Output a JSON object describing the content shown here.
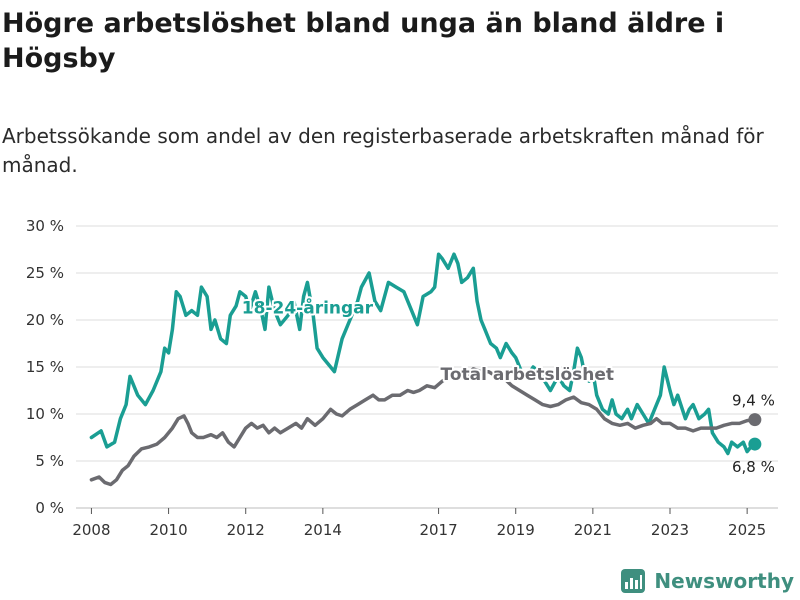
{
  "title": "Högre arbetslöshet bland unga än bland äldre i Högsby",
  "subtitle": "Arbetssökande som andel av den registerbaserade arbetskraften månad för månad.",
  "brand": "Newsworthy",
  "colors": {
    "youth": "#1a9e93",
    "total": "#6b6b70",
    "grid": "#dcdcdc",
    "brand": "#3f8f7f"
  },
  "chart_data": {
    "type": "line",
    "xlabel": "",
    "ylabel": "",
    "ylim": [
      0,
      30
    ],
    "xlim": [
      2007.6,
      2025.8
    ],
    "grid": true,
    "y_ticks": [
      0,
      5,
      10,
      15,
      20,
      25,
      30
    ],
    "y_tick_labels": [
      "0 %",
      "5 %",
      "10 %",
      "15 %",
      "20 %",
      "25 %",
      "30 %"
    ],
    "x_ticks": [
      2008,
      2010,
      2012,
      2014,
      2017,
      2019,
      2021,
      2023,
      2025
    ],
    "x_tick_labels": [
      "2008",
      "2010",
      "2012",
      "2014",
      "2017",
      "2019",
      "2021",
      "2023",
      "2025"
    ],
    "series": [
      {
        "name": "18-24-åringar",
        "color_key": "youth",
        "end_value_label": "6,8 %",
        "points": [
          [
            2008.0,
            7.5
          ],
          [
            2008.25,
            8.2
          ],
          [
            2008.4,
            6.5
          ],
          [
            2008.6,
            7.0
          ],
          [
            2008.75,
            9.5
          ],
          [
            2008.9,
            11.0
          ],
          [
            2009.0,
            14.0
          ],
          [
            2009.2,
            12.0
          ],
          [
            2009.4,
            11.0
          ],
          [
            2009.6,
            12.5
          ],
          [
            2009.8,
            14.5
          ],
          [
            2009.9,
            17.0
          ],
          [
            2010.0,
            16.5
          ],
          [
            2010.1,
            19.0
          ],
          [
            2010.2,
            23.0
          ],
          [
            2010.3,
            22.5
          ],
          [
            2010.45,
            20.5
          ],
          [
            2010.6,
            21.0
          ],
          [
            2010.75,
            20.5
          ],
          [
            2010.85,
            23.5
          ],
          [
            2011.0,
            22.5
          ],
          [
            2011.1,
            19.0
          ],
          [
            2011.2,
            20.0
          ],
          [
            2011.35,
            18.0
          ],
          [
            2011.5,
            17.5
          ],
          [
            2011.6,
            20.5
          ],
          [
            2011.75,
            21.5
          ],
          [
            2011.85,
            23.0
          ],
          [
            2012.0,
            22.5
          ],
          [
            2012.1,
            21.0
          ],
          [
            2012.25,
            23.0
          ],
          [
            2012.4,
            21.0
          ],
          [
            2012.5,
            19.0
          ],
          [
            2012.6,
            23.5
          ],
          [
            2012.75,
            21.0
          ],
          [
            2012.9,
            19.5
          ],
          [
            2013.1,
            20.5
          ],
          [
            2013.25,
            22.0
          ],
          [
            2013.4,
            19.0
          ],
          [
            2013.5,
            22.5
          ],
          [
            2013.6,
            24.0
          ],
          [
            2013.75,
            20.5
          ],
          [
            2013.85,
            17.0
          ],
          [
            2014.0,
            16.0
          ],
          [
            2014.2,
            15.0
          ],
          [
            2014.3,
            14.5
          ],
          [
            2014.5,
            18.0
          ],
          [
            2014.7,
            20.0
          ],
          [
            2014.9,
            22.0
          ],
          [
            2015.0,
            23.5
          ],
          [
            2015.2,
            25.0
          ],
          [
            2015.35,
            22.0
          ],
          [
            2015.5,
            21.0
          ],
          [
            2015.7,
            24.0
          ],
          [
            2015.9,
            23.5
          ],
          [
            2016.1,
            23.0
          ],
          [
            2016.3,
            21.0
          ],
          [
            2016.45,
            19.5
          ],
          [
            2016.6,
            22.5
          ],
          [
            2016.8,
            23.0
          ],
          [
            2016.9,
            23.5
          ],
          [
            2017.0,
            27.0
          ],
          [
            2017.1,
            26.5
          ],
          [
            2017.25,
            25.5
          ],
          [
            2017.4,
            27.0
          ],
          [
            2017.5,
            26.0
          ],
          [
            2017.6,
            24.0
          ],
          [
            2017.75,
            24.5
          ],
          [
            2017.9,
            25.5
          ],
          [
            2018.0,
            22.0
          ],
          [
            2018.1,
            20.0
          ],
          [
            2018.2,
            19.0
          ],
          [
            2018.35,
            17.5
          ],
          [
            2018.5,
            17.0
          ],
          [
            2018.6,
            16.0
          ],
          [
            2018.75,
            17.5
          ],
          [
            2018.9,
            16.5
          ],
          [
            2019.0,
            16.0
          ],
          [
            2019.15,
            14.5
          ],
          [
            2019.3,
            14.0
          ],
          [
            2019.45,
            15.0
          ],
          [
            2019.6,
            14.5
          ],
          [
            2019.75,
            13.5
          ],
          [
            2019.9,
            12.5
          ],
          [
            2020.1,
            14.0
          ],
          [
            2020.25,
            13.0
          ],
          [
            2020.4,
            12.5
          ],
          [
            2020.5,
            14.5
          ],
          [
            2020.6,
            17.0
          ],
          [
            2020.7,
            16.0
          ],
          [
            2020.8,
            14.0
          ],
          [
            2020.9,
            13.5
          ],
          [
            2021.0,
            14.5
          ],
          [
            2021.1,
            12.0
          ],
          [
            2021.25,
            10.5
          ],
          [
            2021.4,
            10.0
          ],
          [
            2021.5,
            11.5
          ],
          [
            2021.6,
            10.0
          ],
          [
            2021.75,
            9.5
          ],
          [
            2021.9,
            10.5
          ],
          [
            2022.0,
            9.5
          ],
          [
            2022.15,
            11.0
          ],
          [
            2022.3,
            10.0
          ],
          [
            2022.45,
            9.0
          ],
          [
            2022.6,
            10.5
          ],
          [
            2022.75,
            12.0
          ],
          [
            2022.85,
            15.0
          ],
          [
            2023.0,
            12.5
          ],
          [
            2023.1,
            11.0
          ],
          [
            2023.2,
            12.0
          ],
          [
            2023.4,
            9.5
          ],
          [
            2023.5,
            10.5
          ],
          [
            2023.6,
            11.0
          ],
          [
            2023.75,
            9.5
          ],
          [
            2023.9,
            10.0
          ],
          [
            2024.0,
            10.5
          ],
          [
            2024.1,
            8.0
          ],
          [
            2024.25,
            7.0
          ],
          [
            2024.4,
            6.5
          ],
          [
            2024.5,
            5.8
          ],
          [
            2024.6,
            7.0
          ],
          [
            2024.75,
            6.5
          ],
          [
            2024.9,
            7.0
          ],
          [
            2025.0,
            6.0
          ],
          [
            2025.1,
            6.5
          ],
          [
            2025.2,
            6.8
          ]
        ]
      },
      {
        "name": "Total arbetslöshet",
        "color_key": "total",
        "end_value_label": "9,4 %",
        "points": [
          [
            2008.0,
            3.0
          ],
          [
            2008.2,
            3.3
          ],
          [
            2008.35,
            2.7
          ],
          [
            2008.5,
            2.5
          ],
          [
            2008.65,
            3.0
          ],
          [
            2008.8,
            4.0
          ],
          [
            2008.95,
            4.5
          ],
          [
            2009.1,
            5.5
          ],
          [
            2009.3,
            6.3
          ],
          [
            2009.5,
            6.5
          ],
          [
            2009.7,
            6.8
          ],
          [
            2009.9,
            7.5
          ],
          [
            2010.1,
            8.5
          ],
          [
            2010.25,
            9.5
          ],
          [
            2010.4,
            9.8
          ],
          [
            2010.5,
            9.0
          ],
          [
            2010.6,
            8.0
          ],
          [
            2010.75,
            7.5
          ],
          [
            2010.9,
            7.5
          ],
          [
            2011.1,
            7.8
          ],
          [
            2011.25,
            7.5
          ],
          [
            2011.4,
            8.0
          ],
          [
            2011.55,
            7.0
          ],
          [
            2011.7,
            6.5
          ],
          [
            2011.85,
            7.5
          ],
          [
            2012.0,
            8.5
          ],
          [
            2012.15,
            9.0
          ],
          [
            2012.3,
            8.5
          ],
          [
            2012.45,
            8.8
          ],
          [
            2012.6,
            8.0
          ],
          [
            2012.75,
            8.5
          ],
          [
            2012.9,
            8.0
          ],
          [
            2013.1,
            8.5
          ],
          [
            2013.3,
            9.0
          ],
          [
            2013.45,
            8.5
          ],
          [
            2013.6,
            9.5
          ],
          [
            2013.8,
            8.8
          ],
          [
            2014.0,
            9.5
          ],
          [
            2014.2,
            10.5
          ],
          [
            2014.35,
            10.0
          ],
          [
            2014.5,
            9.8
          ],
          [
            2014.7,
            10.5
          ],
          [
            2014.9,
            11.0
          ],
          [
            2015.1,
            11.5
          ],
          [
            2015.3,
            12.0
          ],
          [
            2015.45,
            11.5
          ],
          [
            2015.6,
            11.5
          ],
          [
            2015.8,
            12.0
          ],
          [
            2016.0,
            12.0
          ],
          [
            2016.2,
            12.5
          ],
          [
            2016.35,
            12.3
          ],
          [
            2016.5,
            12.5
          ],
          [
            2016.7,
            13.0
          ],
          [
            2016.9,
            12.8
          ],
          [
            2017.1,
            13.5
          ],
          [
            2017.3,
            14.0
          ],
          [
            2017.5,
            14.5
          ],
          [
            2017.7,
            14.0
          ],
          [
            2017.9,
            14.8
          ],
          [
            2018.1,
            14.5
          ],
          [
            2018.3,
            14.5
          ],
          [
            2018.5,
            14.0
          ],
          [
            2018.7,
            13.8
          ],
          [
            2018.9,
            13.0
          ],
          [
            2019.1,
            12.5
          ],
          [
            2019.3,
            12.0
          ],
          [
            2019.5,
            11.5
          ],
          [
            2019.7,
            11.0
          ],
          [
            2019.9,
            10.8
          ],
          [
            2020.1,
            11.0
          ],
          [
            2020.3,
            11.5
          ],
          [
            2020.5,
            11.8
          ],
          [
            2020.7,
            11.2
          ],
          [
            2020.9,
            11.0
          ],
          [
            2021.1,
            10.5
          ],
          [
            2021.3,
            9.5
          ],
          [
            2021.5,
            9.0
          ],
          [
            2021.7,
            8.8
          ],
          [
            2021.9,
            9.0
          ],
          [
            2022.1,
            8.5
          ],
          [
            2022.3,
            8.8
          ],
          [
            2022.5,
            9.0
          ],
          [
            2022.65,
            9.5
          ],
          [
            2022.8,
            9.0
          ],
          [
            2023.0,
            9.0
          ],
          [
            2023.2,
            8.5
          ],
          [
            2023.4,
            8.5
          ],
          [
            2023.6,
            8.2
          ],
          [
            2023.8,
            8.5
          ],
          [
            2024.0,
            8.5
          ],
          [
            2024.2,
            8.5
          ],
          [
            2024.4,
            8.8
          ],
          [
            2024.6,
            9.0
          ],
          [
            2024.8,
            9.0
          ],
          [
            2025.0,
            9.3
          ],
          [
            2025.2,
            9.4
          ]
        ]
      }
    ],
    "annotations": [
      {
        "text": "18-24-åringar",
        "x": 2013.6,
        "y": 20.7,
        "color_key": "youth"
      },
      {
        "text": "Total arbetslöshet",
        "x": 2019.3,
        "y": 13.6,
        "color_key": "total"
      }
    ]
  }
}
